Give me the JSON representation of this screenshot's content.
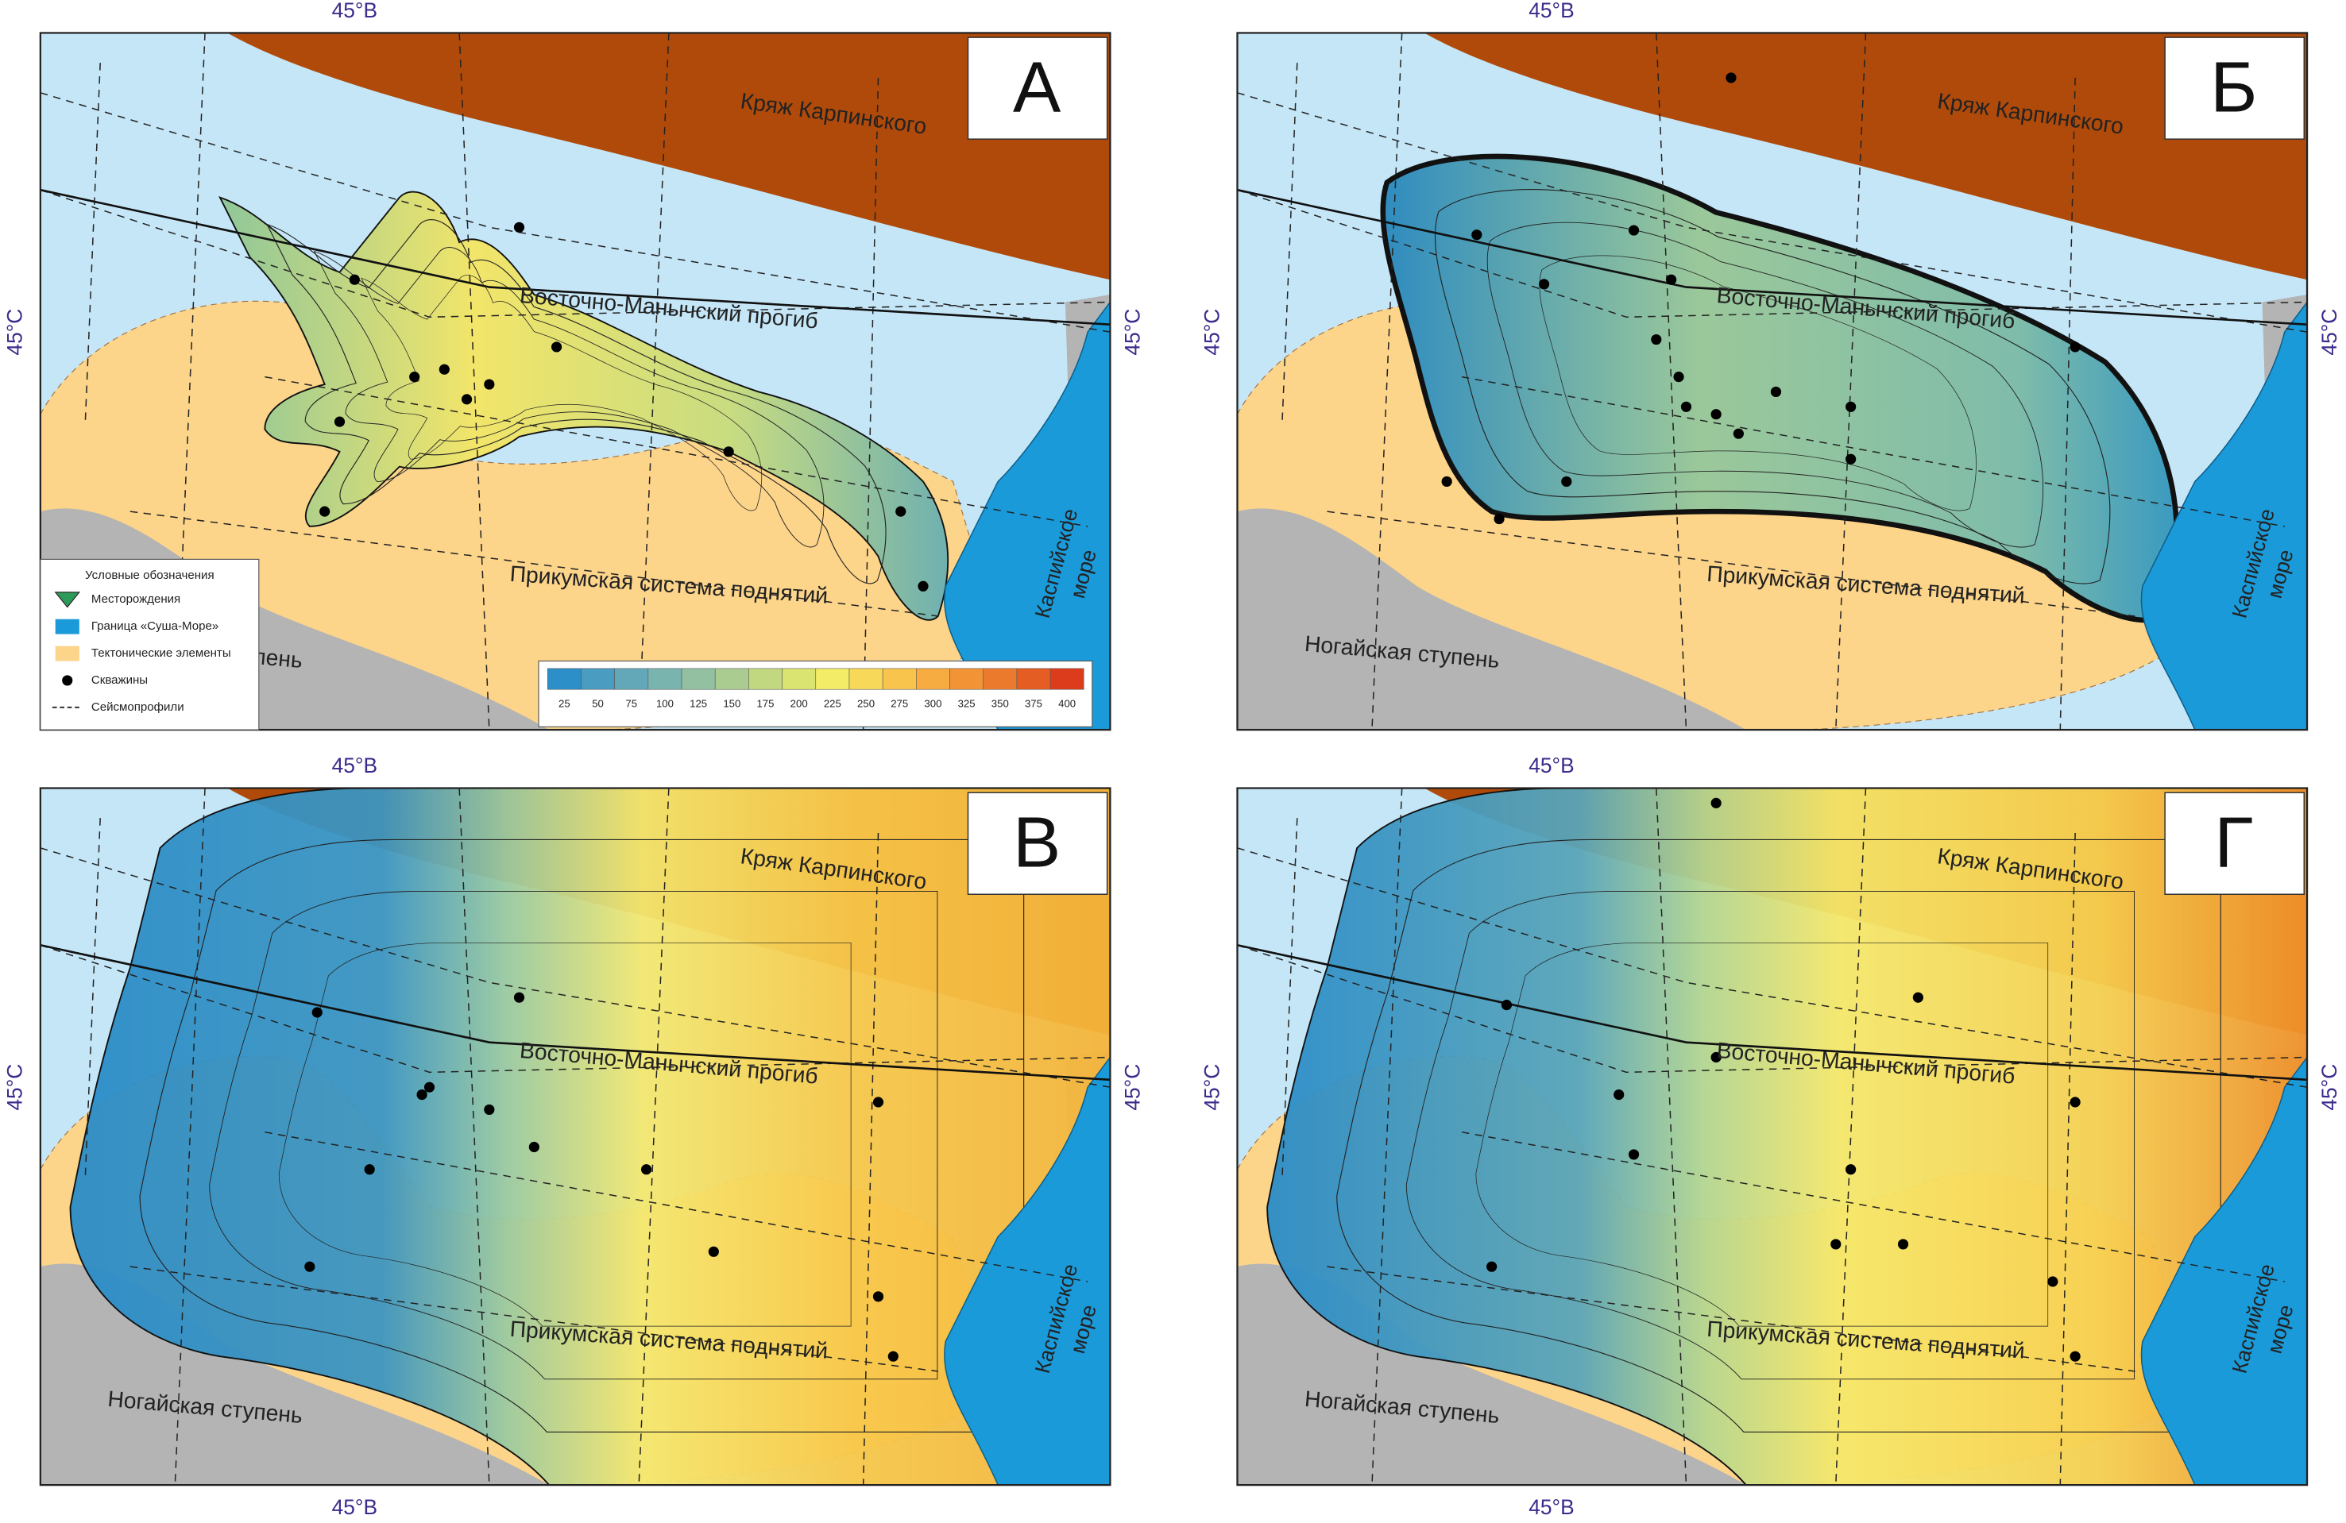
{
  "coords": {
    "lon": "45°В",
    "lat": "45°С"
  },
  "regions": {
    "ridge": "Кряж Карпинского",
    "trough": "Восточно-Манычский прогиб",
    "uplift": "Прикумская система поднятий",
    "step": "Ногайская ступень",
    "sea": [
      "Каспийское",
      "море"
    ]
  },
  "panels": [
    {
      "letter": "А"
    },
    {
      "letter": "Б"
    },
    {
      "letter": "В"
    },
    {
      "letter": "Г"
    }
  ],
  "legend": {
    "title": "Условные обозначения",
    "items": [
      "Месторождения",
      "Граница «Суша-Море»",
      "Тектонические элементы",
      "Скважины",
      "Сейсмопрофили"
    ]
  },
  "colorbar": {
    "ticks": [
      25,
      50,
      75,
      100,
      125,
      150,
      175,
      200,
      225,
      250,
      275,
      300,
      325,
      350,
      375,
      400
    ]
  }
}
